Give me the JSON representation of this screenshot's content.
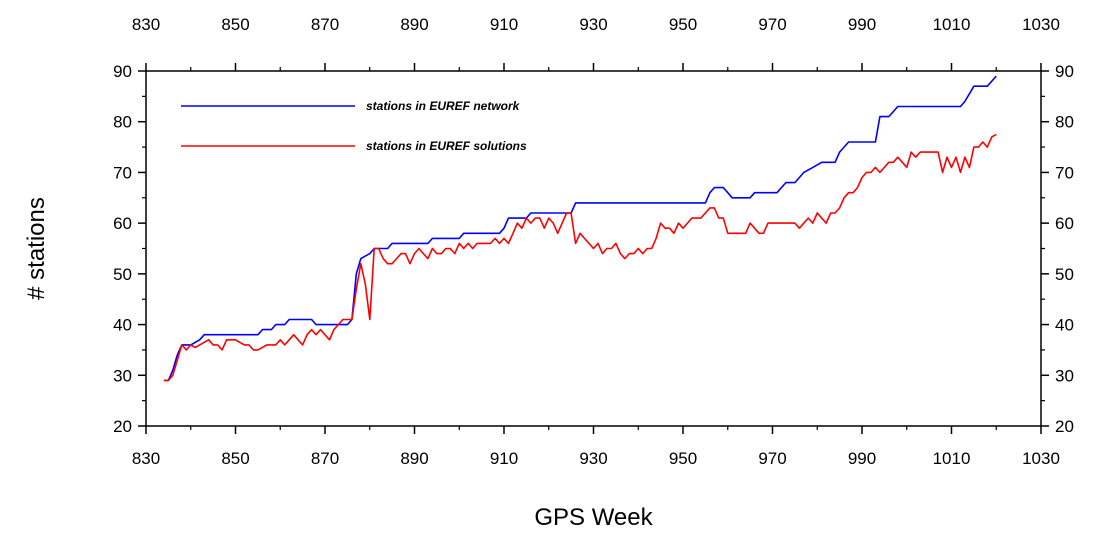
{
  "chart_data": {
    "type": "line",
    "title": "",
    "xlabel": "GPS Week",
    "ylabel": "# stations",
    "xlim": [
      830,
      1030
    ],
    "ylim": [
      20,
      90
    ],
    "x_ticks": [
      830,
      850,
      870,
      890,
      910,
      930,
      950,
      970,
      990,
      1010,
      1030
    ],
    "y_ticks": [
      20,
      30,
      40,
      50,
      60,
      70,
      80,
      90
    ],
    "grid": false,
    "legend": "top-left",
    "series": [
      {
        "name": "stations in EUREF network",
        "color": "#0000ff",
        "points": [
          [
            834,
            29
          ],
          [
            835,
            29
          ],
          [
            836,
            31
          ],
          [
            837,
            34
          ],
          [
            838,
            36
          ],
          [
            840,
            36
          ],
          [
            842,
            37
          ],
          [
            843,
            38
          ],
          [
            853,
            38
          ],
          [
            855,
            38
          ],
          [
            856,
            39
          ],
          [
            858,
            39
          ],
          [
            859,
            40
          ],
          [
            861,
            40
          ],
          [
            862,
            41
          ],
          [
            867,
            41
          ],
          [
            868,
            40
          ],
          [
            875,
            40
          ],
          [
            876,
            41
          ],
          [
            877,
            50
          ],
          [
            878,
            53
          ],
          [
            880,
            54
          ],
          [
            881,
            55
          ],
          [
            884,
            55
          ],
          [
            885,
            56
          ],
          [
            893,
            56
          ],
          [
            894,
            57
          ],
          [
            900,
            57
          ],
          [
            901,
            58
          ],
          [
            909,
            58
          ],
          [
            910,
            59
          ],
          [
            911,
            61
          ],
          [
            915,
            61
          ],
          [
            916,
            62
          ],
          [
            925,
            62
          ],
          [
            926,
            64
          ],
          [
            955,
            64
          ],
          [
            956,
            66
          ],
          [
            957,
            67
          ],
          [
            959,
            67
          ],
          [
            960,
            66
          ],
          [
            961,
            65
          ],
          [
            965,
            65
          ],
          [
            966,
            66
          ],
          [
            971,
            66
          ],
          [
            972,
            67
          ],
          [
            973,
            68
          ],
          [
            975,
            68
          ],
          [
            976,
            69
          ],
          [
            977,
            70
          ],
          [
            979,
            71
          ],
          [
            981,
            72
          ],
          [
            984,
            72
          ],
          [
            985,
            74
          ],
          [
            986,
            75
          ],
          [
            987,
            76
          ],
          [
            993,
            76
          ],
          [
            994,
            81
          ],
          [
            996,
            81
          ],
          [
            997,
            82
          ],
          [
            998,
            83
          ],
          [
            1012,
            83
          ],
          [
            1013,
            84
          ],
          [
            1015,
            87
          ],
          [
            1018,
            87
          ],
          [
            1020,
            89
          ]
        ]
      },
      {
        "name": "stations in EUREF solutions",
        "color": "#ff0000",
        "points": [
          [
            834,
            29
          ],
          [
            835,
            29
          ],
          [
            836,
            30
          ],
          [
            837,
            33
          ],
          [
            838,
            36
          ],
          [
            839,
            35
          ],
          [
            840,
            36
          ],
          [
            841,
            35.5
          ],
          [
            842,
            36
          ],
          [
            843,
            36.5
          ],
          [
            844,
            37
          ],
          [
            845,
            36
          ],
          [
            846,
            36
          ],
          [
            847,
            35
          ],
          [
            848,
            37
          ],
          [
            850,
            37
          ],
          [
            852,
            36
          ],
          [
            853,
            36
          ],
          [
            854,
            35
          ],
          [
            855,
            35
          ],
          [
            856,
            35.5
          ],
          [
            857,
            36
          ],
          [
            858,
            36
          ],
          [
            859,
            36
          ],
          [
            860,
            37
          ],
          [
            861,
            36
          ],
          [
            862,
            37
          ],
          [
            863,
            38
          ],
          [
            864,
            37
          ],
          [
            865,
            36
          ],
          [
            866,
            38
          ],
          [
            867,
            39
          ],
          [
            868,
            38
          ],
          [
            869,
            39
          ],
          [
            870,
            38
          ],
          [
            871,
            37
          ],
          [
            872,
            39
          ],
          [
            873,
            40
          ],
          [
            874,
            41
          ],
          [
            876,
            41
          ],
          [
            877,
            47
          ],
          [
            878,
            52
          ],
          [
            879,
            48
          ],
          [
            880,
            41
          ],
          [
            881,
            55
          ],
          [
            882,
            55
          ],
          [
            883,
            53
          ],
          [
            884,
            52
          ],
          [
            885,
            52
          ],
          [
            886,
            53
          ],
          [
            887,
            54
          ],
          [
            888,
            54
          ],
          [
            889,
            52
          ],
          [
            890,
            54
          ],
          [
            891,
            55
          ],
          [
            892,
            54
          ],
          [
            893,
            53
          ],
          [
            894,
            55
          ],
          [
            895,
            54
          ],
          [
            896,
            54
          ],
          [
            897,
            55
          ],
          [
            898,
            55
          ],
          [
            899,
            54
          ],
          [
            900,
            56
          ],
          [
            901,
            55
          ],
          [
            902,
            56
          ],
          [
            903,
            55
          ],
          [
            904,
            56
          ],
          [
            905,
            56
          ],
          [
            906,
            56
          ],
          [
            907,
            56
          ],
          [
            908,
            57
          ],
          [
            909,
            56
          ],
          [
            910,
            57
          ],
          [
            911,
            56
          ],
          [
            912,
            58
          ],
          [
            913,
            60
          ],
          [
            914,
            59
          ],
          [
            915,
            61
          ],
          [
            916,
            60
          ],
          [
            917,
            61
          ],
          [
            918,
            61
          ],
          [
            919,
            59
          ],
          [
            920,
            61
          ],
          [
            921,
            60
          ],
          [
            922,
            58
          ],
          [
            923,
            60
          ],
          [
            924,
            62
          ],
          [
            925,
            62
          ],
          [
            926,
            56
          ],
          [
            927,
            58
          ],
          [
            928,
            57
          ],
          [
            929,
            56
          ],
          [
            930,
            55
          ],
          [
            931,
            56
          ],
          [
            932,
            54
          ],
          [
            933,
            55
          ],
          [
            934,
            55
          ],
          [
            935,
            56
          ],
          [
            936,
            54
          ],
          [
            937,
            53
          ],
          [
            938,
            54
          ],
          [
            939,
            54
          ],
          [
            940,
            55
          ],
          [
            941,
            54
          ],
          [
            942,
            55
          ],
          [
            943,
            55
          ],
          [
            944,
            57
          ],
          [
            945,
            60
          ],
          [
            946,
            59
          ],
          [
            947,
            59
          ],
          [
            948,
            58
          ],
          [
            949,
            60
          ],
          [
            950,
            59
          ],
          [
            951,
            60
          ],
          [
            952,
            61
          ],
          [
            953,
            61
          ],
          [
            954,
            61
          ],
          [
            955,
            62
          ],
          [
            956,
            63
          ],
          [
            957,
            63
          ],
          [
            958,
            61
          ],
          [
            959,
            61
          ],
          [
            960,
            58
          ],
          [
            961,
            58
          ],
          [
            963,
            58
          ],
          [
            964,
            58
          ],
          [
            965,
            60
          ],
          [
            966,
            59
          ],
          [
            967,
            58
          ],
          [
            968,
            58
          ],
          [
            969,
            60
          ],
          [
            971,
            60
          ],
          [
            972,
            60
          ],
          [
            973,
            60
          ],
          [
            974,
            60
          ],
          [
            975,
            60
          ],
          [
            976,
            59
          ],
          [
            977,
            60
          ],
          [
            978,
            61
          ],
          [
            979,
            60
          ],
          [
            980,
            62
          ],
          [
            981,
            61
          ],
          [
            982,
            60
          ],
          [
            983,
            62
          ],
          [
            984,
            62
          ],
          [
            985,
            63
          ],
          [
            986,
            65
          ],
          [
            987,
            66
          ],
          [
            988,
            66
          ],
          [
            989,
            67
          ],
          [
            990,
            69
          ],
          [
            991,
            70
          ],
          [
            992,
            70
          ],
          [
            993,
            71
          ],
          [
            994,
            70
          ],
          [
            995,
            71
          ],
          [
            996,
            72
          ],
          [
            997,
            72
          ],
          [
            998,
            73
          ],
          [
            999,
            72
          ],
          [
            1000,
            71
          ],
          [
            1001,
            74
          ],
          [
            1002,
            73
          ],
          [
            1003,
            74
          ],
          [
            1004,
            74
          ],
          [
            1005,
            74
          ],
          [
            1006,
            74
          ],
          [
            1007,
            74
          ],
          [
            1008,
            70
          ],
          [
            1009,
            73
          ],
          [
            1010,
            71
          ],
          [
            1011,
            73
          ],
          [
            1012,
            70
          ],
          [
            1013,
            73
          ],
          [
            1014,
            71
          ],
          [
            1015,
            75
          ],
          [
            1016,
            75
          ],
          [
            1017,
            76
          ],
          [
            1018,
            75
          ],
          [
            1019,
            77
          ],
          [
            1020,
            77.5
          ]
        ]
      }
    ]
  }
}
